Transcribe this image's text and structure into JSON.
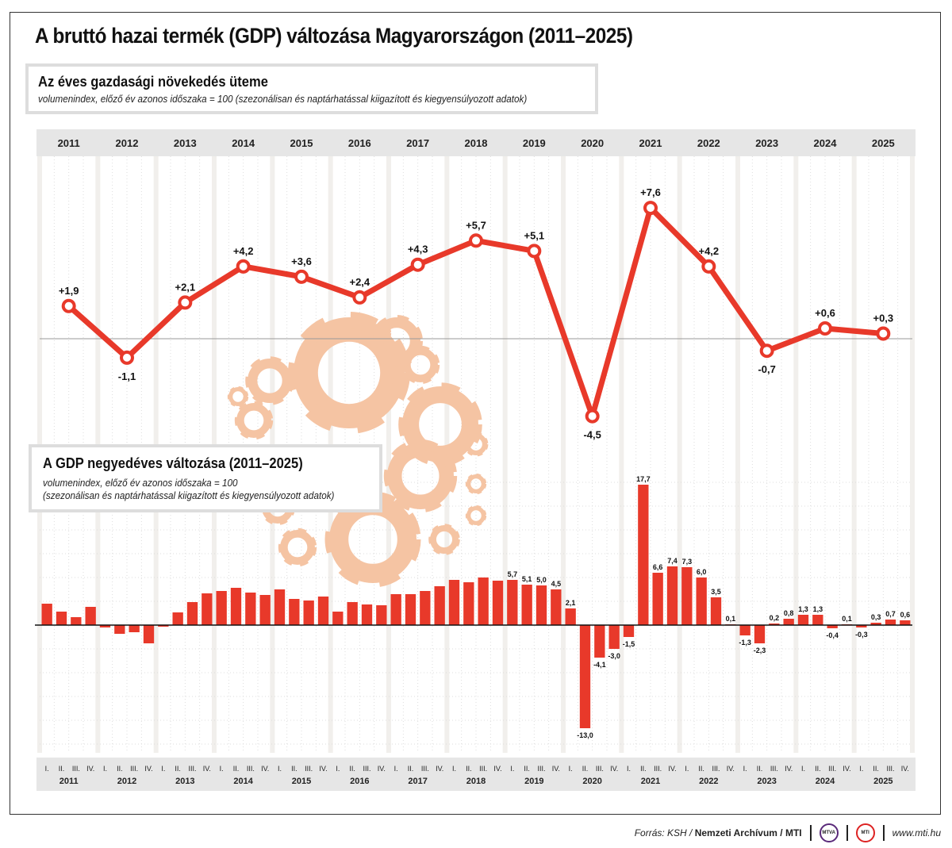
{
  "title": "A bruttó hazai termék (GDP) változása Magyarországon (2011–2025)",
  "colors": {
    "accent": "#e8392a",
    "gear": "#f5c4a3",
    "header_band": "#e6e6e6"
  },
  "footer": {
    "source_prefix": "Forrás: KSH / ",
    "source_bold": "Nemzeti Archívum / MTI",
    "logo1": "MTVA",
    "logo2": "MTI",
    "url": "www.mti.hu"
  },
  "chart_data": [
    {
      "type": "line",
      "title": "Az éves gazdasági növekedés üteme",
      "subtitle": "volumenindex, előző év azonos időszaka = 100 (szezonálisan és naptárhatással kiigazított és kiegyensúlyozott adatok)",
      "categories": [
        "2011",
        "2012",
        "2013",
        "2014",
        "2015",
        "2016",
        "2017",
        "2018",
        "2019",
        "2020",
        "2021",
        "2022",
        "2023",
        "2024",
        "2025"
      ],
      "values": [
        1.9,
        -1.1,
        2.1,
        4.2,
        3.6,
        2.4,
        4.3,
        5.7,
        5.1,
        -4.5,
        7.6,
        4.2,
        -0.7,
        0.6,
        0.3
      ],
      "labels": [
        "+1,9",
        "-1,1",
        "+2,1",
        "+4,2",
        "+3,6",
        "+2,4",
        "+4,3",
        "+5,7",
        "+5,1",
        "-4,5",
        "+7,6",
        "+4,2",
        "-0,7",
        "+0,6",
        "+0,3"
      ],
      "grid": true
    },
    {
      "type": "bar",
      "title": "A GDP negyedéves változása (2011–2025)",
      "subtitle_line1": "volumenindex, előző év azonos időszaka = 100",
      "subtitle_line2": "(szezonálisan és naptárhatással kiigazított és kiegyensúlyozott adatok)",
      "years": [
        "2011",
        "2012",
        "2013",
        "2014",
        "2015",
        "2016",
        "2017",
        "2018",
        "2019",
        "2020",
        "2021",
        "2022",
        "2023",
        "2024",
        "2025"
      ],
      "quarters": [
        "I.",
        "II.",
        "III.",
        "IV."
      ],
      "values": [
        2.7,
        1.7,
        1.0,
        2.3,
        -0.3,
        -1.1,
        -0.9,
        -2.3,
        -0.2,
        1.6,
        2.9,
        4.0,
        4.3,
        4.7,
        4.1,
        3.8,
        4.5,
        3.3,
        3.1,
        3.6,
        1.7,
        2.9,
        2.6,
        2.5,
        3.9,
        3.9,
        4.3,
        4.9,
        5.7,
        5.4,
        6.0,
        5.6,
        5.7,
        5.1,
        5.0,
        4.5,
        2.1,
        -13.0,
        -4.1,
        -3.0,
        -1.5,
        17.7,
        6.6,
        7.4,
        7.3,
        6.0,
        3.5,
        0.1,
        -1.3,
        -2.3,
        0.2,
        0.8,
        1.3,
        1.3,
        -0.4,
        0.1,
        -0.3,
        0.3,
        0.7,
        0.6
      ],
      "labels": [
        "",
        "",
        "",
        "",
        "",
        "",
        "",
        "",
        "",
        "",
        "",
        "",
        "",
        "",
        "",
        "",
        "",
        "",
        "",
        "",
        "",
        "",
        "",
        "",
        "",
        "",
        "",
        "",
        "",
        "",
        "",
        "",
        "5,7",
        "5,1",
        "5,0",
        "4,5",
        "2,1",
        "-13,0",
        "-4,1",
        "-3,0",
        "-1,5",
        "17,7",
        "6,6",
        "7,4",
        "7,3",
        "6,0",
        "3,5",
        "0,1",
        "-1,3",
        "-2,3",
        "0,2",
        "0,8",
        "1,3",
        "1,3",
        "-0,4",
        "0,1",
        "-0,3",
        "0,3",
        "0,7",
        "0,6"
      ],
      "grid": true
    }
  ]
}
